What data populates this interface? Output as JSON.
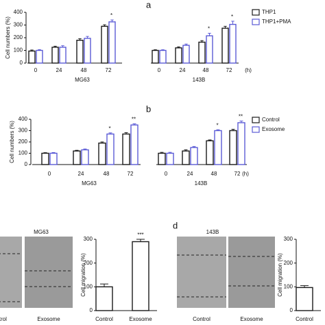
{
  "chart_data": [
    {
      "type": "grouped-bar",
      "panel": "a",
      "y_label": "Cell numbers (%)",
      "groups": [
        "MG63",
        "143B"
      ],
      "categories": [
        "0",
        "24",
        "48",
        "72",
        "0",
        "24",
        "48",
        "72"
      ],
      "x_unit": "(h)",
      "series": [
        {
          "name": "THP1",
          "color": "#1a1a1a",
          "values": [
            95,
            125,
            180,
            290,
            100,
            120,
            165,
            275
          ],
          "errors": [
            8,
            8,
            12,
            12,
            5,
            8,
            12,
            15
          ]
        },
        {
          "name": "THP1+PMA",
          "color": "#5a5ad6",
          "values": [
            100,
            125,
            195,
            325,
            100,
            140,
            215,
            305
          ],
          "errors": [
            6,
            12,
            15,
            15,
            5,
            10,
            20,
            25
          ]
        }
      ],
      "significance": [
        null,
        null,
        null,
        "*",
        null,
        null,
        "*",
        "*"
      ],
      "ylim": [
        0,
        400
      ],
      "yticks": [
        0,
        100,
        200,
        300,
        400
      ]
    },
    {
      "type": "grouped-bar",
      "panel": "b",
      "y_label": "Cell numbers (%)",
      "groups": [
        "MG63",
        "143B"
      ],
      "categories": [
        "0",
        "24",
        "48",
        "72",
        "0",
        "24",
        "48",
        "72"
      ],
      "x_unit": "(h)",
      "series": [
        {
          "name": "Control",
          "color": "#1a1a1a",
          "values": [
            100,
            120,
            190,
            270,
            100,
            120,
            210,
            300
          ],
          "errors": [
            5,
            6,
            10,
            12,
            8,
            10,
            8,
            12
          ]
        },
        {
          "name": "Exosome",
          "color": "#5a5ad6",
          "values": [
            100,
            130,
            270,
            350,
            100,
            150,
            300,
            370
          ],
          "errors": [
            6,
            8,
            10,
            10,
            8,
            10,
            8,
            15
          ]
        }
      ],
      "significance": [
        null,
        null,
        "*",
        "**",
        null,
        null,
        "*",
        "**"
      ],
      "ylim": [
        0,
        400
      ],
      "yticks": [
        0,
        100,
        200,
        300,
        400
      ]
    },
    {
      "type": "bar",
      "image_title": "MG63",
      "image_labels": [
        "Control",
        "Exosome"
      ],
      "y_label": "Cell migration (%)",
      "categories": [
        "Control",
        "Exosome"
      ],
      "values": [
        100,
        290
      ],
      "errors": [
        12,
        10
      ],
      "color": "#1a1a1a",
      "significance": [
        null,
        "***"
      ],
      "ylim": [
        0,
        300
      ],
      "yticks": [
        0,
        100,
        200,
        300
      ]
    },
    {
      "type": "bar",
      "panel": "d",
      "image_title": "143B",
      "image_labels": [
        "Control",
        "Exosome"
      ],
      "y_label": "Cell migration (%)",
      "categories": [
        "Control"
      ],
      "values": [
        97
      ],
      "errors": [
        8
      ],
      "color": "#1a1a1a",
      "ylim": [
        0,
        300
      ],
      "yticks": [
        0,
        100,
        200,
        300
      ]
    }
  ]
}
